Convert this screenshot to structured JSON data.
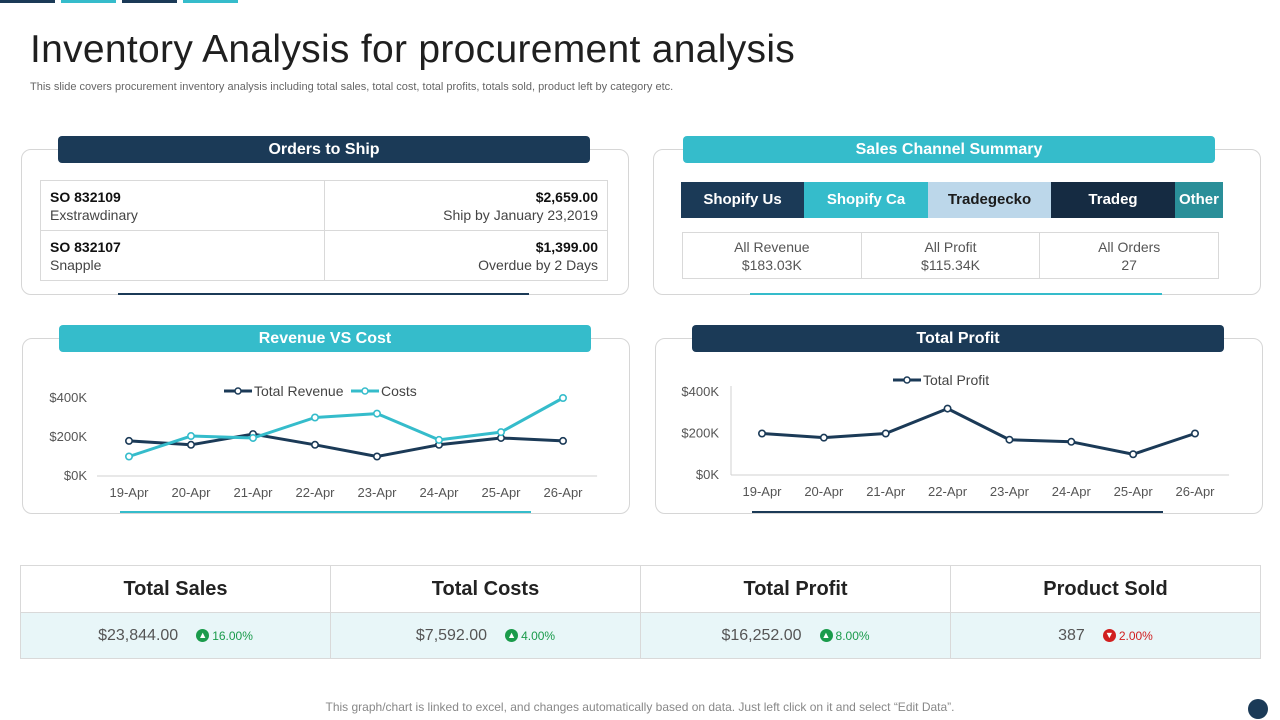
{
  "header": {
    "title": "Inventory Analysis for procurement analysis",
    "subtitle": "This slide covers procurement inventory analysis including total sales, total cost, total profits, totals sold, product left by category etc."
  },
  "orders": {
    "heading": "Orders to Ship",
    "rows": [
      {
        "id": "SO 832109",
        "name": "Exstrawdinary",
        "amount": "$2,659.00",
        "status": "Ship by January 23,2019"
      },
      {
        "id": "SO 832107",
        "name": "Snapple",
        "amount": "$1,399.00",
        "status": "Overdue by 2 Days"
      }
    ]
  },
  "channels": {
    "heading": "Sales Channel Summary",
    "tabs": [
      {
        "label": "Shopify Us",
        "bg": "#1b3a57",
        "fg": "#ffffff"
      },
      {
        "label": "Shopify Ca",
        "bg": "#35bccb",
        "fg": "#ffffff"
      },
      {
        "label": "Tradegecko",
        "bg": "#bcd7ea",
        "fg": "#1b1b1b"
      },
      {
        "label": "Tradeg",
        "bg": "#152b42",
        "fg": "#ffffff"
      },
      {
        "label": "Other",
        "bg": "#2a8f99",
        "fg": "#ffffff"
      }
    ],
    "stats": [
      {
        "label": "All Revenue",
        "value": "$183.03K"
      },
      {
        "label": "All Profit",
        "value": "$115.34K"
      },
      {
        "label": "All Orders",
        "value": "27"
      }
    ]
  },
  "revenue_panel": {
    "heading": "Revenue VS Cost"
  },
  "profit_panel": {
    "heading": "Total Profit"
  },
  "chart_data": [
    {
      "type": "line",
      "title": "Revenue VS Cost",
      "categories": [
        "19-Apr",
        "20-Apr",
        "21-Apr",
        "22-Apr",
        "23-Apr",
        "24-Apr",
        "25-Apr",
        "26-Apr"
      ],
      "series": [
        {
          "name": "Total Revenue",
          "color": "#1b3a57",
          "values": [
            180,
            160,
            215,
            160,
            100,
            160,
            195,
            180
          ]
        },
        {
          "name": "Costs",
          "color": "#35bccb",
          "values": [
            100,
            205,
            195,
            300,
            320,
            185,
            225,
            400
          ]
        }
      ],
      "yticks": [
        "$400K",
        "$200K",
        "$0K"
      ],
      "ylim": [
        0,
        400
      ],
      "legend": "top"
    },
    {
      "type": "line",
      "title": "Total Profit",
      "categories": [
        "19-Apr",
        "20-Apr",
        "21-Apr",
        "22-Apr",
        "23-Apr",
        "24-Apr",
        "25-Apr",
        "26-Apr"
      ],
      "series": [
        {
          "name": "Total Profit",
          "color": "#1b3a57",
          "values": [
            200,
            180,
            200,
            320,
            170,
            160,
            100,
            200
          ]
        }
      ],
      "yticks": [
        "$400K",
        "$200K",
        "$0K"
      ],
      "ylim": [
        0,
        400
      ],
      "legend": "top"
    }
  ],
  "kpis": [
    {
      "label": "Total Sales",
      "value": "$23,844.00",
      "change": "16.00%",
      "direction": "up",
      "color": "#1a9b4b"
    },
    {
      "label": "Total Costs",
      "value": "$7,592.00",
      "change": "4.00%",
      "direction": "up",
      "color": "#1a9b4b"
    },
    {
      "label": "Total Profit",
      "value": "$16,252.00",
      "change": "8.00%",
      "direction": "up",
      "color": "#1a9b4b"
    },
    {
      "label": "Product Sold",
      "value": "387",
      "change": "2.00%",
      "direction": "down",
      "color": "#d11f1f"
    }
  ],
  "footer": "This graph/chart is linked to excel, and changes automatically based on data. Just left click on it and select “Edit Data”."
}
